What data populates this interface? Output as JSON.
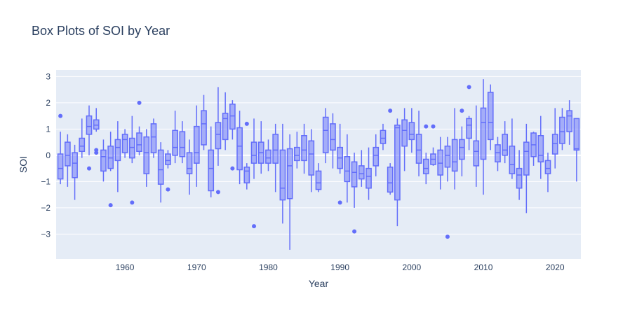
{
  "chart_data": {
    "type": "box",
    "title": "Box Plots of SOI by Year",
    "xlabel": "Year",
    "ylabel": "SOI",
    "xlim": [
      1950.4,
      2023.6
    ],
    "ylim": [
      -3.95,
      3.25
    ],
    "x_ticks": [
      1960,
      1970,
      1980,
      1990,
      2000,
      2010,
      2020
    ],
    "y_ticks": [
      -3,
      -2,
      -1,
      0,
      1,
      2,
      3
    ],
    "grid": true,
    "legend": false,
    "colors": {
      "box_line": "#636efa",
      "box_fill": "rgba(99,110,250,0.5)",
      "plot_bg": "#e5ecf6",
      "grid": "#ffffff",
      "text": "#2a3f5f"
    },
    "boxes": [
      {
        "year": 1951,
        "min": -1.1,
        "q1": -0.9,
        "median": -0.5,
        "q3": 0.05,
        "max": 0.9,
        "outliers": [
          1.5
        ]
      },
      {
        "year": 1952,
        "min": -1.2,
        "q1": -0.4,
        "median": 0.0,
        "q3": 0.5,
        "max": 0.8,
        "outliers": []
      },
      {
        "year": 1953,
        "min": -1.7,
        "q1": -0.85,
        "median": -0.3,
        "q3": 0.1,
        "max": 0.4,
        "outliers": []
      },
      {
        "year": 1954,
        "min": -0.1,
        "q1": 0.15,
        "median": 0.35,
        "q3": 0.65,
        "max": 1.4,
        "outliers": []
      },
      {
        "year": 1955,
        "min": 0.0,
        "q1": 0.8,
        "median": 1.1,
        "q3": 1.5,
        "max": 1.9,
        "outliers": [
          -0.5
        ]
      },
      {
        "year": 1956,
        "min": 0.9,
        "q1": 1.0,
        "median": 1.15,
        "q3": 1.35,
        "max": 1.8,
        "outliers": [
          0.1,
          0.2
        ]
      },
      {
        "year": 1957,
        "min": -1.0,
        "q1": -0.6,
        "median": -0.05,
        "q3": 0.2,
        "max": 0.6,
        "outliers": []
      },
      {
        "year": 1958,
        "min": -0.6,
        "q1": -0.5,
        "median": -0.1,
        "q3": 0.35,
        "max": 0.9,
        "outliers": [
          -1.9
        ]
      },
      {
        "year": 1959,
        "min": -1.4,
        "q1": -0.2,
        "median": 0.3,
        "q3": 0.6,
        "max": 1.3,
        "outliers": []
      },
      {
        "year": 1960,
        "min": -0.1,
        "q1": 0.1,
        "median": 0.6,
        "q3": 0.8,
        "max": 1.0,
        "outliers": []
      },
      {
        "year": 1961,
        "min": -0.3,
        "q1": -0.1,
        "median": 0.3,
        "q3": 0.65,
        "max": 1.5,
        "outliers": [
          -1.8
        ]
      },
      {
        "year": 1962,
        "min": 0.0,
        "q1": 0.15,
        "median": 0.4,
        "q3": 0.85,
        "max": 1.1,
        "outliers": [
          2.0
        ]
      },
      {
        "year": 1963,
        "min": -1.2,
        "q1": -0.7,
        "median": 0.1,
        "q3": 0.7,
        "max": 1.0,
        "outliers": []
      },
      {
        "year": 1964,
        "min": -0.1,
        "q1": 0.1,
        "median": 0.7,
        "q3": 1.2,
        "max": 1.4,
        "outliers": []
      },
      {
        "year": 1965,
        "min": -1.8,
        "q1": -1.1,
        "median": -0.55,
        "q3": 0.2,
        "max": 0.5,
        "outliers": []
      },
      {
        "year": 1966,
        "min": -0.5,
        "q1": -0.35,
        "median": -0.2,
        "q3": 0.05,
        "max": 0.2,
        "outliers": [
          -1.3
        ]
      },
      {
        "year": 1967,
        "min": -0.3,
        "q1": 0.0,
        "median": 0.3,
        "q3": 0.95,
        "max": 1.7,
        "outliers": []
      },
      {
        "year": 1968,
        "min": -0.3,
        "q1": -0.05,
        "median": 0.3,
        "q3": 0.9,
        "max": 1.3,
        "outliers": []
      },
      {
        "year": 1969,
        "min": -1.5,
        "q1": -0.7,
        "median": -0.5,
        "q3": 0.1,
        "max": 0.6,
        "outliers": []
      },
      {
        "year": 1970,
        "min": -1.2,
        "q1": -0.3,
        "median": 0.1,
        "q3": 1.1,
        "max": 1.9,
        "outliers": []
      },
      {
        "year": 1971,
        "min": 0.2,
        "q1": 0.4,
        "median": 1.2,
        "q3": 1.7,
        "max": 2.3,
        "outliers": []
      },
      {
        "year": 1972,
        "min": -1.6,
        "q1": -1.35,
        "median": -0.5,
        "q3": 0.2,
        "max": 1.1,
        "outliers": []
      },
      {
        "year": 1973,
        "min": -0.4,
        "q1": 0.25,
        "median": 0.8,
        "q3": 1.25,
        "max": 2.6,
        "outliers": [
          -1.4
        ]
      },
      {
        "year": 1974,
        "min": 0.2,
        "q1": 0.6,
        "median": 1.4,
        "q3": 1.6,
        "max": 2.4,
        "outliers": []
      },
      {
        "year": 1975,
        "min": 0.6,
        "q1": 1.0,
        "median": 1.5,
        "q3": 1.95,
        "max": 2.1,
        "outliers": [
          -0.5
        ]
      },
      {
        "year": 1976,
        "min": -1.1,
        "q1": -0.55,
        "median": 0.35,
        "q3": 1.05,
        "max": 1.7,
        "outliers": []
      },
      {
        "year": 1977,
        "min": -1.3,
        "q1": -1.05,
        "median": -0.6,
        "q3": -0.45,
        "max": -0.3,
        "outliers": [
          1.2
        ]
      },
      {
        "year": 1978,
        "min": -0.9,
        "q1": -0.3,
        "median": 0.0,
        "q3": 0.5,
        "max": 1.4,
        "outliers": [
          -2.7
        ]
      },
      {
        "year": 1979,
        "min": -0.7,
        "q1": -0.3,
        "median": 0.1,
        "q3": 0.5,
        "max": 1.3,
        "outliers": []
      },
      {
        "year": 1980,
        "min": -0.6,
        "q1": -0.3,
        "median": -0.1,
        "q3": 0.2,
        "max": 0.6,
        "outliers": []
      },
      {
        "year": 1981,
        "min": -1.4,
        "q1": -0.3,
        "median": 0.2,
        "q3": 0.8,
        "max": 1.2,
        "outliers": []
      },
      {
        "year": 1982,
        "min": -2.6,
        "q1": -1.7,
        "median": -1.25,
        "q3": 0.2,
        "max": 1.2,
        "outliers": []
      },
      {
        "year": 1983,
        "min": -3.6,
        "q1": -1.65,
        "median": -0.4,
        "q3": 0.25,
        "max": 0.8,
        "outliers": []
      },
      {
        "year": 1984,
        "min": -0.5,
        "q1": -0.2,
        "median": 0.0,
        "q3": 0.3,
        "max": 0.9,
        "outliers": []
      },
      {
        "year": 1985,
        "min": -0.7,
        "q1": -0.2,
        "median": 0.2,
        "q3": 0.75,
        "max": 1.2,
        "outliers": []
      },
      {
        "year": 1986,
        "min": -1.4,
        "q1": -0.75,
        "median": 0.05,
        "q3": 0.55,
        "max": 1.0,
        "outliers": []
      },
      {
        "year": 1987,
        "min": -1.4,
        "q1": -1.3,
        "median": -1.05,
        "q3": -0.6,
        "max": -0.3,
        "outliers": []
      },
      {
        "year": 1988,
        "min": -0.3,
        "q1": 0.1,
        "median": 0.95,
        "q3": 1.45,
        "max": 1.8,
        "outliers": []
      },
      {
        "year": 1989,
        "min": -0.5,
        "q1": 0.2,
        "median": 0.6,
        "q3": 1.2,
        "max": 1.6,
        "outliers": []
      },
      {
        "year": 1990,
        "min": -0.7,
        "q1": -0.5,
        "median": -0.1,
        "q3": 0.3,
        "max": 1.2,
        "outliers": [
          -1.8
        ]
      },
      {
        "year": 1991,
        "min": -1.8,
        "q1": -1.0,
        "median": -0.6,
        "q3": -0.05,
        "max": 0.8,
        "outliers": []
      },
      {
        "year": 1992,
        "min": -2.0,
        "q1": -1.2,
        "median": -0.65,
        "q3": -0.25,
        "max": 0.1,
        "outliers": [
          -2.9
        ]
      },
      {
        "year": 1993,
        "min": -1.2,
        "q1": -0.9,
        "median": -0.7,
        "q3": -0.4,
        "max": 0.2,
        "outliers": []
      },
      {
        "year": 1994,
        "min": -1.7,
        "q1": -1.25,
        "median": -0.8,
        "q3": -0.5,
        "max": 0.3,
        "outliers": []
      },
      {
        "year": 1995,
        "min": -0.8,
        "q1": -0.4,
        "median": 0.0,
        "q3": 0.3,
        "max": 0.8,
        "outliers": []
      },
      {
        "year": 1996,
        "min": 0.2,
        "q1": 0.45,
        "median": 0.65,
        "q3": 0.95,
        "max": 1.2,
        "outliers": []
      },
      {
        "year": 1997,
        "min": -1.5,
        "q1": -1.4,
        "median": -1.05,
        "q3": -0.45,
        "max": -0.3,
        "outliers": [
          1.7
        ]
      },
      {
        "year": 1998,
        "min": -2.7,
        "q1": -1.7,
        "median": 1.05,
        "q3": 1.15,
        "max": 1.4,
        "outliers": []
      },
      {
        "year": 1999,
        "min": -0.6,
        "q1": 0.35,
        "median": 0.95,
        "q3": 1.35,
        "max": 1.8,
        "outliers": []
      },
      {
        "year": 2000,
        "min": 0.1,
        "q1": 0.6,
        "median": 0.8,
        "q3": 1.25,
        "max": 1.8,
        "outliers": []
      },
      {
        "year": 2001,
        "min": -0.8,
        "q1": -0.3,
        "median": 0.2,
        "q3": 0.8,
        "max": 1.7,
        "outliers": []
      },
      {
        "year": 2002,
        "min": -1.1,
        "q1": -0.7,
        "median": -0.5,
        "q3": -0.15,
        "max": 0.1,
        "outliers": [
          1.1
        ]
      },
      {
        "year": 2003,
        "min": -0.4,
        "q1": -0.35,
        "median": -0.15,
        "q3": 0.05,
        "max": 0.3,
        "outliers": [
          1.1
        ]
      },
      {
        "year": 2004,
        "min": -1.3,
        "q1": -0.75,
        "median": -0.3,
        "q3": 0.2,
        "max": 0.7,
        "outliers": []
      },
      {
        "year": 2005,
        "min": -1.0,
        "q1": -0.45,
        "median": 0.0,
        "q3": 0.35,
        "max": 0.7,
        "outliers": [
          -3.1
        ]
      },
      {
        "year": 2006,
        "min": -1.3,
        "q1": -0.6,
        "median": -0.25,
        "q3": 0.6,
        "max": 1.8,
        "outliers": []
      },
      {
        "year": 2007,
        "min": -0.8,
        "q1": -0.15,
        "median": 0.3,
        "q3": 0.6,
        "max": 1.1,
        "outliers": [
          1.7
        ]
      },
      {
        "year": 2008,
        "min": 0.2,
        "q1": 0.65,
        "median": 1.15,
        "q3": 1.4,
        "max": 1.5,
        "outliers": [
          2.6
        ]
      },
      {
        "year": 2009,
        "min": -1.2,
        "q1": -0.4,
        "median": 0.15,
        "q3": 0.55,
        "max": 1.9,
        "outliers": []
      },
      {
        "year": 2010,
        "min": -1.5,
        "q1": -0.15,
        "median": 1.25,
        "q3": 1.8,
        "max": 2.9,
        "outliers": []
      },
      {
        "year": 2011,
        "min": 0.2,
        "q1": 0.6,
        "median": 1.25,
        "q3": 2.4,
        "max": 2.7,
        "outliers": []
      },
      {
        "year": 2012,
        "min": -0.6,
        "q1": -0.25,
        "median": 0.1,
        "q3": 0.4,
        "max": 0.7,
        "outliers": []
      },
      {
        "year": 2013,
        "min": -0.3,
        "q1": 0.0,
        "median": 0.2,
        "q3": 0.8,
        "max": 1.3,
        "outliers": []
      },
      {
        "year": 2014,
        "min": -0.9,
        "q1": -0.7,
        "median": -0.35,
        "q3": 0.35,
        "max": 1.4,
        "outliers": []
      },
      {
        "year": 2015,
        "min": -1.7,
        "q1": -1.25,
        "median": -0.75,
        "q3": -0.5,
        "max": 0.2,
        "outliers": []
      },
      {
        "year": 2016,
        "min": -2.2,
        "q1": -0.75,
        "median": 0.15,
        "q3": 0.5,
        "max": 1.2,
        "outliers": []
      },
      {
        "year": 2017,
        "min": -0.4,
        "q1": -0.05,
        "median": 0.4,
        "q3": 0.85,
        "max": 0.9,
        "outliers": []
      },
      {
        "year": 2018,
        "min": -0.9,
        "q1": -0.25,
        "median": 0.0,
        "q3": 0.75,
        "max": 1.5,
        "outliers": []
      },
      {
        "year": 2019,
        "min": -1.4,
        "q1": -0.7,
        "median": -0.5,
        "q3": -0.2,
        "max": 0.1,
        "outliers": []
      },
      {
        "year": 2020,
        "min": -0.5,
        "q1": 0.05,
        "median": 0.45,
        "q3": 0.8,
        "max": 1.8,
        "outliers": []
      },
      {
        "year": 2021,
        "min": 0.2,
        "q1": 0.45,
        "median": 0.9,
        "q3": 1.45,
        "max": 1.8,
        "outliers": []
      },
      {
        "year": 2022,
        "min": 0.4,
        "q1": 0.9,
        "median": 1.5,
        "q3": 1.7,
        "max": 2.1,
        "outliers": []
      },
      {
        "year": 2023,
        "min": -1.0,
        "q1": 0.2,
        "median": 0.25,
        "q3": 1.4,
        "max": 1.4,
        "outliers": []
      }
    ]
  }
}
